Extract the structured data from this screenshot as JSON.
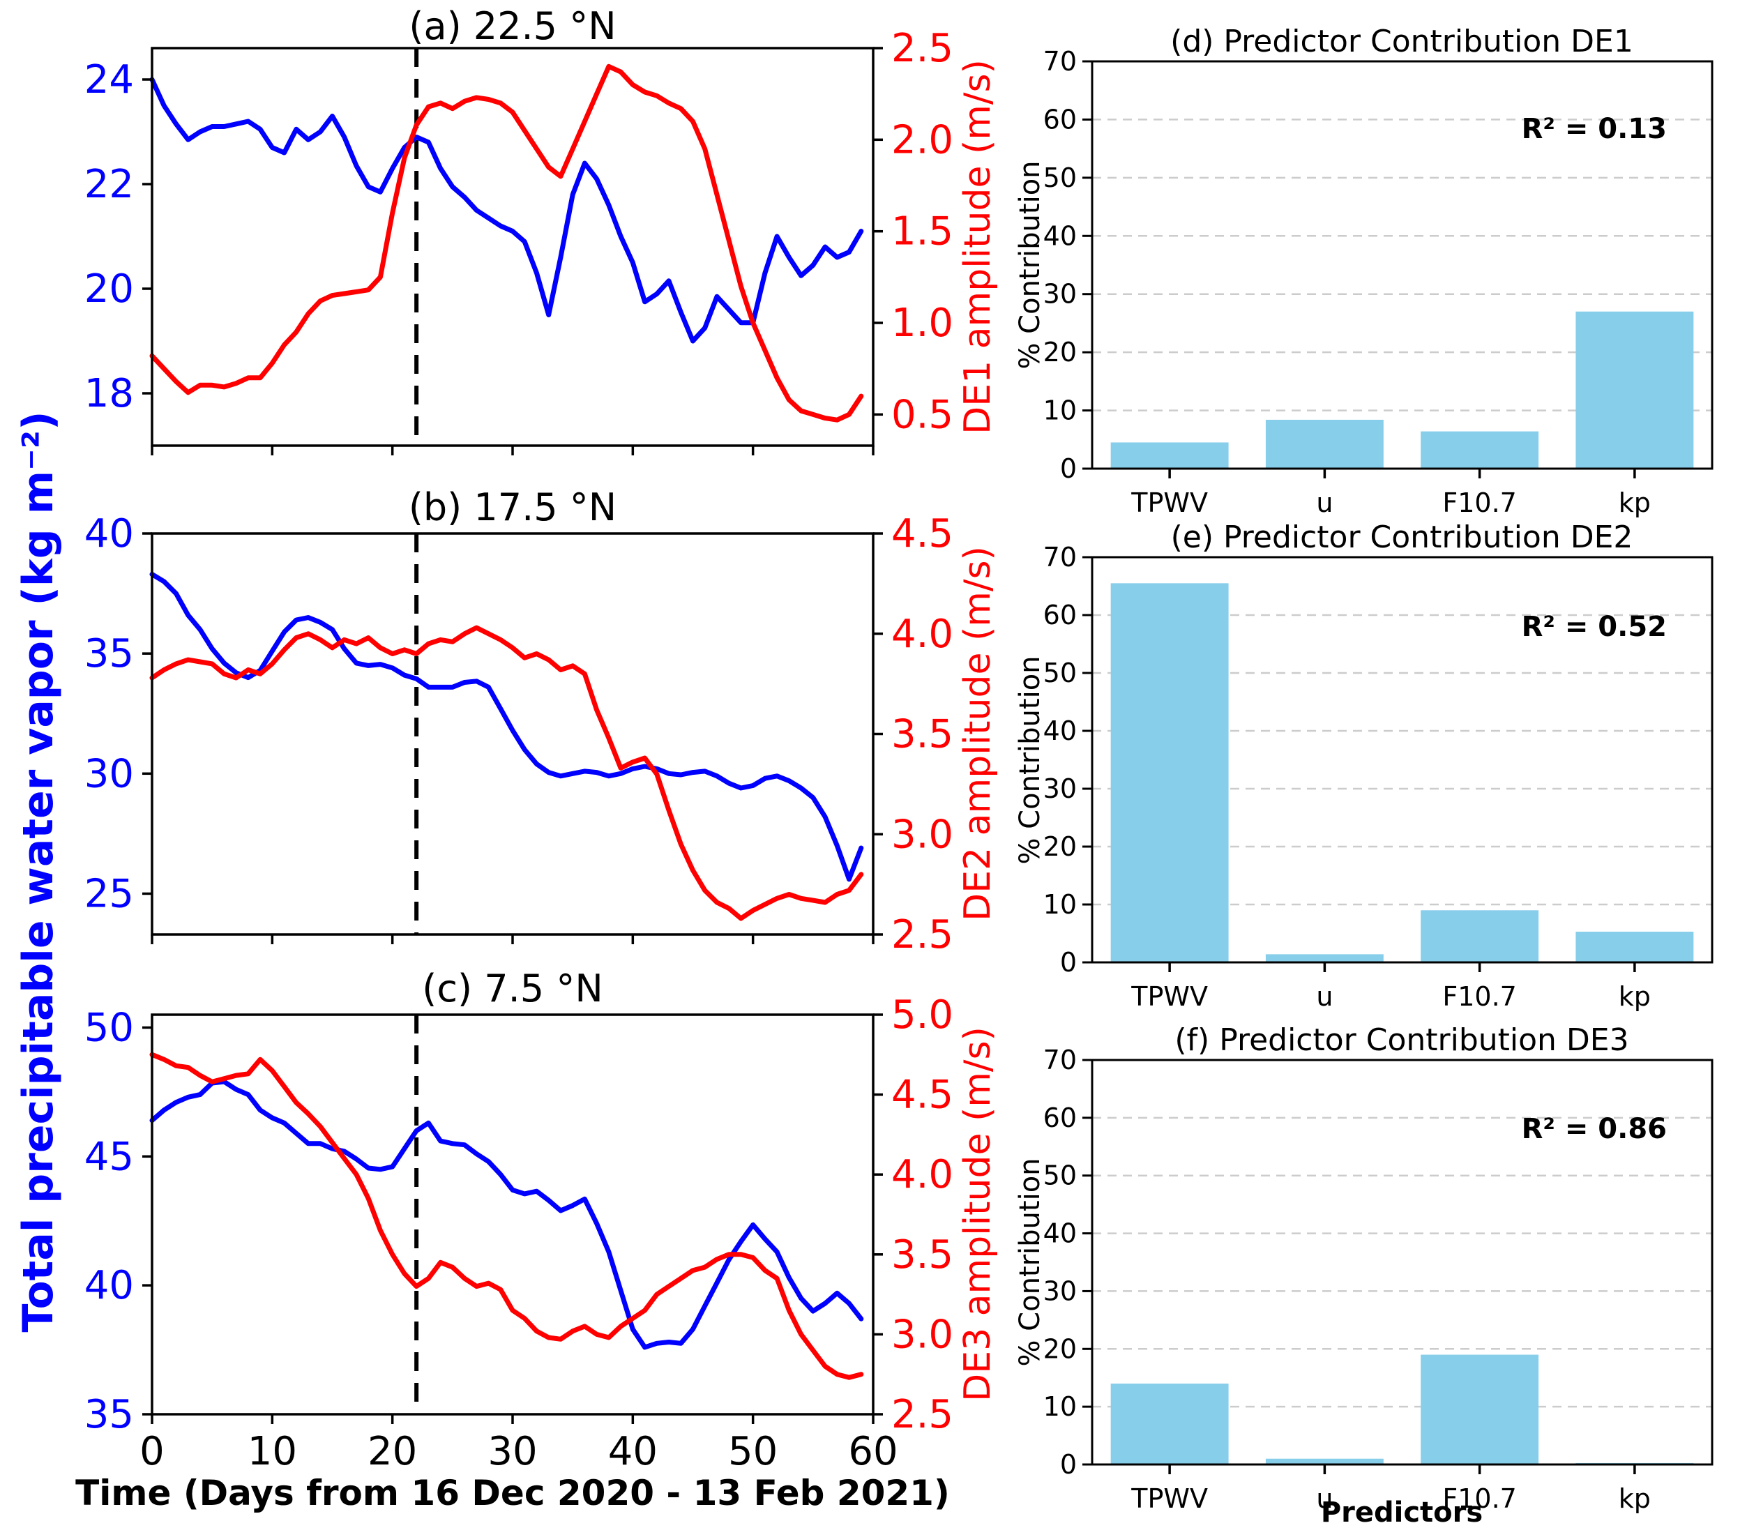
{
  "labels": {
    "left_ylabel": "Total precipitable water vapor (kg m⁻²)",
    "time_xlabel": "Time (Days from 16 Dec 2020 - 13 Feb 2021)",
    "predictors_xlabel": "Predictors"
  },
  "colors": {
    "blue": "#0000ff",
    "red": "#ff0000",
    "bar": "#87ceeb",
    "grid": "#cccccc",
    "axis": "#000000",
    "dashed_line": "#000000"
  },
  "days": [
    0,
    1,
    2,
    3,
    4,
    5,
    6,
    7,
    8,
    9,
    10,
    11,
    12,
    13,
    14,
    15,
    16,
    17,
    18,
    19,
    20,
    21,
    22,
    23,
    24,
    25,
    26,
    27,
    28,
    29,
    30,
    31,
    32,
    33,
    34,
    35,
    36,
    37,
    38,
    39,
    40,
    41,
    42,
    43,
    44,
    45,
    46,
    47,
    48,
    49,
    50,
    51,
    52,
    53,
    54,
    55,
    56,
    57,
    58,
    59
  ],
  "chart_data": [
    {
      "id": "a",
      "type": "line",
      "title": "(a) 22.5 °N",
      "right_ylabel": "DE1 amplitude (m/s)",
      "xlim": [
        0,
        60
      ],
      "x_ticks": [
        0,
        10,
        20,
        30,
        40,
        50,
        60
      ],
      "dashed_vline_x": 22,
      "left_axis": {
        "ylim": [
          17.0,
          24.6
        ],
        "ticks": [
          18,
          20,
          22,
          24
        ],
        "tick_labels": [
          "18",
          "20",
          "22",
          "24"
        ]
      },
      "right_axis": {
        "ylim": [
          0.33,
          2.5
        ],
        "ticks": [
          0.5,
          1.0,
          1.5,
          2.0,
          2.5
        ],
        "tick_labels": [
          "0.5",
          "1.0",
          "1.5",
          "2.0",
          "2.5"
        ]
      },
      "series": [
        {
          "name": "Total precipitable water vapor",
          "axis": "left",
          "color_key": "blue",
          "values": [
            24.0,
            23.5,
            23.15,
            22.85,
            23.0,
            23.1,
            23.1,
            23.15,
            23.2,
            23.05,
            22.7,
            22.6,
            23.05,
            22.85,
            23.0,
            23.3,
            22.9,
            22.35,
            21.95,
            21.85,
            22.3,
            22.7,
            22.9,
            22.8,
            22.3,
            21.95,
            21.75,
            21.5,
            21.35,
            21.2,
            21.1,
            20.9,
            20.3,
            19.5,
            20.6,
            21.8,
            22.4,
            22.1,
            21.6,
            21.0,
            20.5,
            19.75,
            19.9,
            20.15,
            19.55,
            19.0,
            19.25,
            19.85,
            19.6,
            19.35,
            19.35,
            20.3,
            21.0,
            20.6,
            20.25,
            20.45,
            20.8,
            20.6,
            20.7,
            21.1
          ]
        },
        {
          "name": "DE1 amplitude",
          "axis": "right",
          "color_key": "red",
          "values": [
            0.82,
            0.75,
            0.68,
            0.62,
            0.66,
            0.66,
            0.65,
            0.67,
            0.7,
            0.7,
            0.78,
            0.88,
            0.95,
            1.05,
            1.12,
            1.15,
            1.16,
            1.17,
            1.18,
            1.25,
            1.6,
            1.9,
            2.08,
            2.18,
            2.2,
            2.17,
            2.21,
            2.23,
            2.22,
            2.2,
            2.15,
            2.05,
            1.95,
            1.85,
            1.8,
            1.95,
            2.1,
            2.25,
            2.4,
            2.37,
            2.3,
            2.26,
            2.24,
            2.2,
            2.17,
            2.1,
            1.95,
            1.7,
            1.45,
            1.2,
            1.0,
            0.85,
            0.7,
            0.58,
            0.52,
            0.5,
            0.48,
            0.47,
            0.5,
            0.6
          ]
        }
      ]
    },
    {
      "id": "b",
      "type": "line",
      "title": "(b) 17.5 °N",
      "right_ylabel": "DE2 amplitude (m/s)",
      "xlim": [
        0,
        60
      ],
      "x_ticks": [
        0,
        10,
        20,
        30,
        40,
        50,
        60
      ],
      "dashed_vline_x": 22,
      "left_axis": {
        "ylim": [
          23.3,
          40.0
        ],
        "ticks": [
          25,
          30,
          35,
          40
        ],
        "tick_labels": [
          "25",
          "30",
          "35",
          "40"
        ]
      },
      "right_axis": {
        "ylim": [
          2.5,
          4.5
        ],
        "ticks": [
          2.5,
          3.0,
          3.5,
          4.0,
          4.5
        ],
        "tick_labels": [
          "2.5",
          "3.0",
          "3.5",
          "4.0",
          "4.5"
        ]
      },
      "series": [
        {
          "name": "Total precipitable water vapor",
          "axis": "left",
          "color_key": "blue",
          "values": [
            38.3,
            38.0,
            37.5,
            36.6,
            36.0,
            35.2,
            34.6,
            34.2,
            34.0,
            34.3,
            35.1,
            35.9,
            36.4,
            36.5,
            36.3,
            36.0,
            35.2,
            34.6,
            34.5,
            34.55,
            34.4,
            34.1,
            33.95,
            33.6,
            33.6,
            33.6,
            33.8,
            33.85,
            33.6,
            32.7,
            31.8,
            31.0,
            30.4,
            30.05,
            29.9,
            30.0,
            30.1,
            30.05,
            29.9,
            30.0,
            30.2,
            30.3,
            30.2,
            30.0,
            29.95,
            30.05,
            30.1,
            29.9,
            29.6,
            29.4,
            29.5,
            29.8,
            29.9,
            29.7,
            29.4,
            29.0,
            28.2,
            27.0,
            25.6,
            26.9
          ]
        },
        {
          "name": "DE2 amplitude",
          "axis": "right",
          "color_key": "red",
          "values": [
            3.78,
            3.82,
            3.85,
            3.87,
            3.86,
            3.85,
            3.8,
            3.78,
            3.82,
            3.8,
            3.85,
            3.92,
            3.98,
            4.0,
            3.97,
            3.93,
            3.97,
            3.95,
            3.98,
            3.93,
            3.9,
            3.92,
            3.9,
            3.95,
            3.97,
            3.96,
            4.0,
            4.03,
            4.0,
            3.97,
            3.93,
            3.88,
            3.9,
            3.87,
            3.82,
            3.84,
            3.8,
            3.62,
            3.48,
            3.33,
            3.36,
            3.38,
            3.3,
            3.12,
            2.95,
            2.82,
            2.72,
            2.66,
            2.63,
            2.58,
            2.62,
            2.65,
            2.68,
            2.7,
            2.68,
            2.67,
            2.66,
            2.7,
            2.72,
            2.8
          ]
        }
      ]
    },
    {
      "id": "c",
      "type": "line",
      "title": "(c) 7.5 °N",
      "right_ylabel": "DE3 amplitude (m/s)",
      "xlim": [
        0,
        60
      ],
      "x_ticks": [
        0,
        10,
        20,
        30,
        40,
        50,
        60
      ],
      "x_tick_labels": [
        "0",
        "10",
        "20",
        "30",
        "40",
        "50",
        "60"
      ],
      "dashed_vline_x": 22,
      "left_axis": {
        "ylim": [
          35.0,
          50.5
        ],
        "ticks": [
          35,
          40,
          45,
          50
        ],
        "tick_labels": [
          "35",
          "40",
          "45",
          "50"
        ]
      },
      "right_axis": {
        "ylim": [
          2.5,
          5.0
        ],
        "ticks": [
          2.5,
          3.0,
          3.5,
          4.0,
          4.5,
          5.0
        ],
        "tick_labels": [
          "2.5",
          "3.0",
          "3.5",
          "4.0",
          "4.5",
          "5.0"
        ]
      },
      "series": [
        {
          "name": "Total precipitable water vapor",
          "axis": "left",
          "color_key": "blue",
          "values": [
            46.4,
            46.8,
            47.1,
            47.3,
            47.4,
            47.85,
            47.9,
            47.6,
            47.4,
            46.8,
            46.5,
            46.3,
            45.9,
            45.5,
            45.5,
            45.3,
            45.2,
            44.9,
            44.55,
            44.5,
            44.6,
            45.3,
            46.0,
            46.3,
            45.6,
            45.5,
            45.45,
            45.1,
            44.8,
            44.3,
            43.7,
            43.55,
            43.65,
            43.3,
            42.9,
            43.1,
            43.35,
            42.4,
            41.3,
            39.8,
            38.3,
            37.6,
            37.75,
            37.8,
            37.75,
            38.3,
            39.2,
            40.1,
            41.0,
            41.7,
            42.35,
            41.8,
            41.3,
            40.3,
            39.5,
            39.0,
            39.3,
            39.7,
            39.3,
            38.7
          ]
        },
        {
          "name": "DE3 amplitude",
          "axis": "right",
          "color_key": "red",
          "values": [
            4.75,
            4.72,
            4.68,
            4.67,
            4.62,
            4.58,
            4.6,
            4.62,
            4.63,
            4.72,
            4.65,
            4.55,
            4.45,
            4.38,
            4.3,
            4.2,
            4.1,
            4.0,
            3.85,
            3.65,
            3.5,
            3.38,
            3.3,
            3.35,
            3.45,
            3.42,
            3.35,
            3.3,
            3.32,
            3.28,
            3.15,
            3.1,
            3.02,
            2.98,
            2.97,
            3.02,
            3.05,
            3.0,
            2.98,
            3.05,
            3.1,
            3.15,
            3.25,
            3.3,
            3.35,
            3.4,
            3.42,
            3.47,
            3.5,
            3.5,
            3.48,
            3.4,
            3.35,
            3.15,
            3.0,
            2.9,
            2.8,
            2.75,
            2.73,
            2.75
          ]
        }
      ]
    },
    {
      "id": "d",
      "type": "bar",
      "title": "(d) Predictor Contribution DE1",
      "r2_label": "R² = 0.13",
      "ylabel": "% Contribution",
      "categories": [
        "TPWV",
        "u",
        "F10.7",
        "kp"
      ],
      "values": [
        4.5,
        8.4,
        6.4,
        27.0
      ],
      "ylim": [
        0,
        70
      ],
      "yticks": [
        0,
        10,
        20,
        30,
        40,
        50,
        60,
        70
      ],
      "ytick_labels": [
        "0",
        "10",
        "20",
        "30",
        "40",
        "50",
        "60",
        "70"
      ],
      "gridlines": [
        10,
        20,
        30,
        40,
        50,
        60
      ]
    },
    {
      "id": "e",
      "type": "bar",
      "title": "(e) Predictor Contribution DE2",
      "r2_label": "R² = 0.52",
      "ylabel": "% Contribution",
      "categories": [
        "TPWV",
        "u",
        "F10.7",
        "kp"
      ],
      "values": [
        65.5,
        1.4,
        9.0,
        5.3
      ],
      "ylim": [
        0,
        70
      ],
      "yticks": [
        0,
        10,
        20,
        30,
        40,
        50,
        60,
        70
      ],
      "ytick_labels": [
        "0",
        "10",
        "20",
        "30",
        "40",
        "50",
        "60",
        "70"
      ],
      "gridlines": [
        10,
        20,
        30,
        40,
        50,
        60
      ]
    },
    {
      "id": "f",
      "type": "bar",
      "title": "(f) Predictor Contribution DE3",
      "r2_label": "R² = 0.86",
      "ylabel": "% Contribution",
      "categories": [
        "TPWV",
        "u",
        "F10.7",
        "kp"
      ],
      "values": [
        14.0,
        1.0,
        19.0,
        0.25
      ],
      "ylim": [
        0,
        70
      ],
      "yticks": [
        0,
        10,
        20,
        30,
        40,
        50,
        60,
        70
      ],
      "ytick_labels": [
        "0",
        "10",
        "20",
        "30",
        "40",
        "50",
        "60",
        "70"
      ],
      "gridlines": [
        10,
        20,
        30,
        40,
        50,
        60
      ]
    }
  ]
}
